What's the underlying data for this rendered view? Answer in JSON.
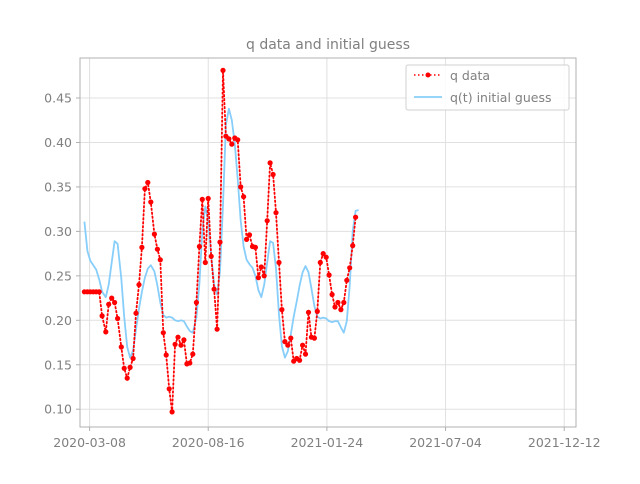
{
  "chart_data": {
    "type": "line",
    "title": "q data and initial guess",
    "xlabel": "",
    "ylabel": "",
    "xlim": [
      "2020-02-24",
      "2021-12-28"
    ],
    "ylim": [
      0.08,
      0.495
    ],
    "x_tick_labels": [
      "2020-03-08",
      "2020-08-16",
      "2021-01-24",
      "2021-07-04",
      "2021-12-12"
    ],
    "y_tick_labels": [
      "0.10",
      "0.15",
      "0.20",
      "0.25",
      "0.30",
      "0.35",
      "0.40",
      "0.45"
    ],
    "y_ticks": [
      0.1,
      0.15,
      0.2,
      0.25,
      0.3,
      0.35,
      0.4,
      0.45
    ],
    "grid": true,
    "legend_position": "top-right",
    "colors": {
      "q_data": "#ff0000",
      "initial_guess": "#87cefa",
      "axes_text": "#808080",
      "grid": "#e0e0e0"
    },
    "series": [
      {
        "name": "q data",
        "style": "dotted-markers",
        "points": [
          [
            "2020-03-01",
            0.232
          ],
          [
            "2020-03-05",
            0.232
          ],
          [
            "2020-03-09",
            0.232
          ],
          [
            "2020-03-13",
            0.232
          ],
          [
            "2020-03-17",
            0.232
          ],
          [
            "2020-03-21",
            0.232
          ],
          [
            "2020-03-25",
            0.205
          ],
          [
            "2020-03-30",
            0.187
          ],
          [
            "2020-04-03",
            0.218
          ],
          [
            "2020-04-07",
            0.225
          ],
          [
            "2020-04-11",
            0.22
          ],
          [
            "2020-04-15",
            0.202
          ],
          [
            "2020-04-20",
            0.17
          ],
          [
            "2020-04-24",
            0.146
          ],
          [
            "2020-04-28",
            0.135
          ],
          [
            "2020-05-02",
            0.147
          ],
          [
            "2020-05-06",
            0.157
          ],
          [
            "2020-05-10",
            0.208
          ],
          [
            "2020-05-14",
            0.24
          ],
          [
            "2020-05-18",
            0.282
          ],
          [
            "2020-05-22",
            0.348
          ],
          [
            "2020-05-26",
            0.355
          ],
          [
            "2020-05-30",
            0.333
          ],
          [
            "2020-06-04",
            0.297
          ],
          [
            "2020-06-08",
            0.28
          ],
          [
            "2020-06-12",
            0.268
          ],
          [
            "2020-06-16",
            0.186
          ],
          [
            "2020-06-20",
            0.161
          ],
          [
            "2020-06-24",
            0.123
          ],
          [
            "2020-06-28",
            0.097
          ],
          [
            "2020-07-02",
            0.173
          ],
          [
            "2020-07-06",
            0.181
          ],
          [
            "2020-07-10",
            0.172
          ],
          [
            "2020-07-14",
            0.178
          ],
          [
            "2020-07-18",
            0.151
          ],
          [
            "2020-07-22",
            0.152
          ],
          [
            "2020-07-26",
            0.162
          ],
          [
            "2020-07-31",
            0.22
          ],
          [
            "2020-08-04",
            0.283
          ],
          [
            "2020-08-08",
            0.336
          ],
          [
            "2020-08-12",
            0.265
          ],
          [
            "2020-08-16",
            0.337
          ],
          [
            "2020-08-20",
            0.272
          ],
          [
            "2020-08-24",
            0.235
          ],
          [
            "2020-08-28",
            0.19
          ],
          [
            "2020-09-01",
            0.288
          ],
          [
            "2020-09-05",
            0.481
          ],
          [
            "2020-09-09",
            0.407
          ],
          [
            "2020-09-13",
            0.404
          ],
          [
            "2020-09-17",
            0.398
          ],
          [
            "2020-09-21",
            0.405
          ],
          [
            "2020-09-25",
            0.403
          ],
          [
            "2020-09-29",
            0.35
          ],
          [
            "2020-10-03",
            0.339
          ],
          [
            "2020-10-07",
            0.291
          ],
          [
            "2020-10-11",
            0.296
          ],
          [
            "2020-10-15",
            0.283
          ],
          [
            "2020-10-19",
            0.282
          ],
          [
            "2020-10-23",
            0.248
          ],
          [
            "2020-10-27",
            0.26
          ],
          [
            "2020-10-31",
            0.25
          ],
          [
            "2020-11-04",
            0.312
          ],
          [
            "2020-11-08",
            0.377
          ],
          [
            "2020-11-12",
            0.364
          ],
          [
            "2020-11-16",
            0.321
          ],
          [
            "2020-11-20",
            0.265
          ],
          [
            "2020-11-24",
            0.212
          ],
          [
            "2020-11-28",
            0.176
          ],
          [
            "2020-12-02",
            0.172
          ],
          [
            "2020-12-06",
            0.18
          ],
          [
            "2020-12-10",
            0.154
          ],
          [
            "2020-12-14",
            0.157
          ],
          [
            "2020-12-18",
            0.155
          ],
          [
            "2020-12-22",
            0.172
          ],
          [
            "2020-12-26",
            0.162
          ],
          [
            "2020-12-30",
            0.209
          ],
          [
            "2021-01-03",
            0.181
          ],
          [
            "2021-01-07",
            0.18
          ],
          [
            "2021-01-11",
            0.21
          ],
          [
            "2021-01-15",
            0.265
          ],
          [
            "2021-01-19",
            0.275
          ],
          [
            "2021-01-23",
            0.271
          ],
          [
            "2021-01-27",
            0.251
          ],
          [
            "2021-01-31",
            0.229
          ],
          [
            "2021-02-04",
            0.215
          ],
          [
            "2021-02-08",
            0.22
          ],
          [
            "2021-02-12",
            0.212
          ],
          [
            "2021-02-16",
            0.22
          ],
          [
            "2021-02-20",
            0.245
          ],
          [
            "2021-02-24",
            0.259
          ],
          [
            "2021-02-28",
            0.284
          ],
          [
            "2021-03-04",
            0.316
          ]
        ]
      },
      {
        "name": "q(t) initial guess",
        "style": "solid",
        "points": [
          [
            "2020-03-01",
            0.311
          ],
          [
            "2020-03-05",
            0.278
          ],
          [
            "2020-03-09",
            0.267
          ],
          [
            "2020-03-13",
            0.262
          ],
          [
            "2020-03-17",
            0.257
          ],
          [
            "2020-03-21",
            0.246
          ],
          [
            "2020-03-25",
            0.232
          ],
          [
            "2020-03-30",
            0.226
          ],
          [
            "2020-04-03",
            0.24
          ],
          [
            "2020-04-07",
            0.265
          ],
          [
            "2020-04-11",
            0.289
          ],
          [
            "2020-04-15",
            0.286
          ],
          [
            "2020-04-20",
            0.247
          ],
          [
            "2020-04-24",
            0.204
          ],
          [
            "2020-04-28",
            0.17
          ],
          [
            "2020-05-02",
            0.158
          ],
          [
            "2020-05-06",
            0.166
          ],
          [
            "2020-05-10",
            0.19
          ],
          [
            "2020-05-14",
            0.213
          ],
          [
            "2020-05-18",
            0.232
          ],
          [
            "2020-05-22",
            0.248
          ],
          [
            "2020-05-26",
            0.258
          ],
          [
            "2020-05-30",
            0.262
          ],
          [
            "2020-06-04",
            0.255
          ],
          [
            "2020-06-08",
            0.239
          ],
          [
            "2020-06-12",
            0.22
          ],
          [
            "2020-06-16",
            0.206
          ],
          [
            "2020-06-20",
            0.203
          ],
          [
            "2020-06-24",
            0.204
          ],
          [
            "2020-06-28",
            0.203
          ],
          [
            "2020-07-02",
            0.2
          ],
          [
            "2020-07-06",
            0.199
          ],
          [
            "2020-07-10",
            0.2
          ],
          [
            "2020-07-14",
            0.199
          ],
          [
            "2020-07-18",
            0.193
          ],
          [
            "2020-07-22",
            0.188
          ],
          [
            "2020-07-26",
            0.186
          ],
          [
            "2020-07-31",
            0.203
          ],
          [
            "2020-08-04",
            0.241
          ],
          [
            "2020-08-08",
            0.3
          ],
          [
            "2020-08-12",
            0.328
          ],
          [
            "2020-08-16",
            0.313
          ],
          [
            "2020-08-20",
            0.273
          ],
          [
            "2020-08-24",
            0.24
          ],
          [
            "2020-08-28",
            0.229
          ],
          [
            "2020-09-01",
            0.255
          ],
          [
            "2020-09-05",
            0.33
          ],
          [
            "2020-09-09",
            0.42
          ],
          [
            "2020-09-13",
            0.438
          ],
          [
            "2020-09-17",
            0.425
          ],
          [
            "2020-09-21",
            0.398
          ],
          [
            "2020-09-25",
            0.359
          ],
          [
            "2020-09-29",
            0.312
          ],
          [
            "2020-10-03",
            0.283
          ],
          [
            "2020-10-07",
            0.268
          ],
          [
            "2020-10-11",
            0.263
          ],
          [
            "2020-10-15",
            0.259
          ],
          [
            "2020-10-19",
            0.25
          ],
          [
            "2020-10-23",
            0.234
          ],
          [
            "2020-10-27",
            0.226
          ],
          [
            "2020-10-31",
            0.24
          ],
          [
            "2020-11-04",
            0.265
          ],
          [
            "2020-11-08",
            0.289
          ],
          [
            "2020-11-12",
            0.287
          ],
          [
            "2020-11-16",
            0.258
          ],
          [
            "2020-11-20",
            0.206
          ],
          [
            "2020-11-24",
            0.171
          ],
          [
            "2020-11-28",
            0.158
          ],
          [
            "2020-12-02",
            0.165
          ],
          [
            "2020-12-06",
            0.184
          ],
          [
            "2020-12-10",
            0.204
          ],
          [
            "2020-12-14",
            0.221
          ],
          [
            "2020-12-18",
            0.239
          ],
          [
            "2020-12-22",
            0.254
          ],
          [
            "2020-12-26",
            0.261
          ],
          [
            "2020-12-30",
            0.254
          ],
          [
            "2021-01-03",
            0.236
          ],
          [
            "2021-01-07",
            0.216
          ],
          [
            "2021-01-11",
            0.204
          ],
          [
            "2021-01-15",
            0.202
          ],
          [
            "2021-01-19",
            0.203
          ],
          [
            "2021-01-23",
            0.202
          ],
          [
            "2021-01-27",
            0.199
          ],
          [
            "2021-01-31",
            0.198
          ],
          [
            "2021-02-04",
            0.199
          ],
          [
            "2021-02-08",
            0.199
          ],
          [
            "2021-02-12",
            0.192
          ],
          [
            "2021-02-16",
            0.186
          ],
          [
            "2021-02-20",
            0.199
          ],
          [
            "2021-02-24",
            0.239
          ],
          [
            "2021-02-28",
            0.3
          ],
          [
            "2021-03-04",
            0.323
          ],
          [
            "2021-03-08",
            0.324
          ]
        ]
      }
    ]
  }
}
